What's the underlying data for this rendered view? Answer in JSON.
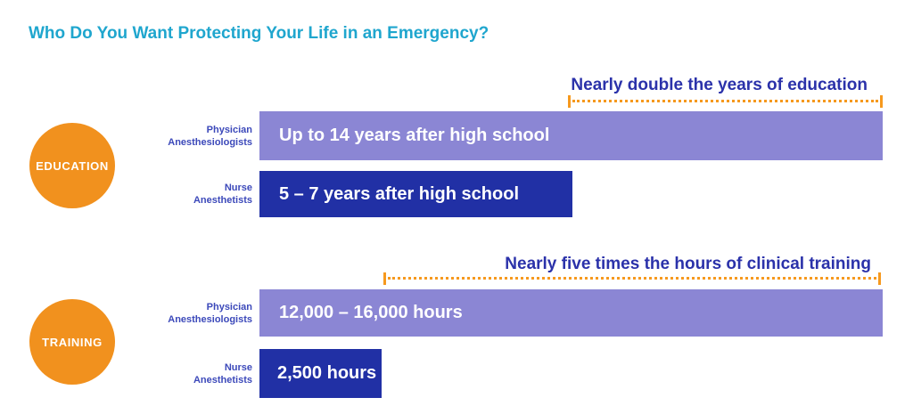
{
  "title": "Who Do You Want Protecting Your Life in an Emergency?",
  "colors": {
    "title_teal": "#1FA6CE",
    "bar_purple": "#8B86D4",
    "bar_navy": "#2130A5",
    "badge_orange": "#F1911E",
    "dotted_line_orange": "#F6991E",
    "annotation_blue": "#2B32AA",
    "label_blue": "#3C49BA"
  },
  "chart_data": [
    {
      "type": "bar",
      "orientation": "horizontal",
      "section_badge": "EDUCATION",
      "annotation": "Nearly double the years of education",
      "categories": [
        "Physician Anesthesiologists",
        "Nurse Anesthetists"
      ],
      "category_lines": [
        {
          "line1": "Physician",
          "line2": "Anesthesiologists"
        },
        {
          "line1": "Nurse",
          "line2": "Anesthetists"
        }
      ],
      "values_years": [
        14,
        7
      ],
      "bar_labels": [
        "Up to 14 years after high school",
        "5 – 7 years after high school"
      ],
      "bar_colors": [
        "#8B86D4",
        "#2130A5"
      ],
      "unit": "years after high school",
      "legend": "none",
      "grid": false
    },
    {
      "type": "bar",
      "orientation": "horizontal",
      "section_badge": "TRAINING",
      "annotation": "Nearly five times the hours of clinical training",
      "categories": [
        "Physician Anesthesiologists",
        "Nurse Anesthetists"
      ],
      "category_lines": [
        {
          "line1": "Physician",
          "line2": "Anesthesiologists"
        },
        {
          "line1": "Nurse",
          "line2": "Anesthetists"
        }
      ],
      "values_hours_range": [
        [
          12000,
          16000
        ],
        [
          2500,
          2500
        ]
      ],
      "bar_labels": [
        "12,000 – 16,000 hours",
        "2,500 hours"
      ],
      "bar_colors": [
        "#8B86D4",
        "#2130A5"
      ],
      "unit": "hours",
      "legend": "none",
      "grid": false
    }
  ]
}
